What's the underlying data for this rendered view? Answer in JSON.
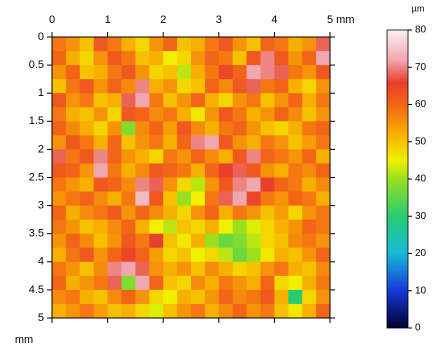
{
  "chart_data": {
    "type": "heatmap",
    "xlim": [
      0,
      5
    ],
    "ylim": [
      0,
      5
    ],
    "xticks": [
      0,
      1,
      2,
      3,
      4,
      {
        "value": 5,
        "label": "5 mm"
      }
    ],
    "yticks": [
      0,
      0.5,
      1,
      1.5,
      2,
      2.5,
      3,
      3.5,
      4,
      4.5,
      5
    ],
    "ylabel": "mm",
    "colorbar": {
      "label": "µm",
      "lim": [
        0,
        80
      ],
      "ticks": [
        0,
        10,
        20,
        30,
        40,
        50,
        60,
        70,
        80
      ]
    },
    "colorscale": [
      [
        0,
        "#000030"
      ],
      [
        10,
        "#1838d8"
      ],
      [
        20,
        "#18b8d8"
      ],
      [
        30,
        "#28cc70"
      ],
      [
        40,
        "#98e020"
      ],
      [
        45,
        "#f0f000"
      ],
      [
        52,
        "#f8b000"
      ],
      [
        60,
        "#f26418"
      ],
      [
        66,
        "#e8402a"
      ],
      [
        72,
        "#f0a8b0"
      ],
      [
        80,
        "#fcf0f4"
      ]
    ],
    "z": [
      [
        58,
        55,
        50,
        62,
        58,
        52,
        48,
        55,
        60,
        50,
        52,
        58,
        62,
        55,
        50,
        60,
        58,
        52,
        55,
        68
      ],
      [
        60,
        52,
        48,
        55,
        62,
        58,
        50,
        52,
        45,
        48,
        55,
        60,
        58,
        50,
        62,
        70,
        62,
        55,
        60,
        72
      ],
      [
        55,
        60,
        50,
        52,
        58,
        62,
        55,
        48,
        50,
        42,
        52,
        58,
        65,
        60,
        72,
        70,
        68,
        58,
        55,
        62
      ],
      [
        50,
        58,
        62,
        55,
        60,
        56,
        70,
        52,
        55,
        48,
        50,
        60,
        56,
        62,
        68,
        58,
        60,
        52,
        48,
        55
      ],
      [
        62,
        55,
        58,
        50,
        52,
        68,
        72,
        58,
        50,
        55,
        60,
        52,
        48,
        55,
        58,
        50,
        55,
        60,
        52,
        58
      ],
      [
        58,
        52,
        50,
        55,
        48,
        62,
        60,
        56,
        58,
        52,
        46,
        55,
        62,
        58,
        52,
        55,
        60,
        56,
        50,
        55
      ],
      [
        60,
        56,
        52,
        48,
        55,
        38,
        56,
        60,
        54,
        62,
        56,
        52,
        58,
        60,
        55,
        50,
        48,
        52,
        58,
        60
      ],
      [
        55,
        62,
        58,
        52,
        60,
        50,
        55,
        58,
        52,
        60,
        70,
        72,
        62,
        55,
        52,
        58,
        55,
        50,
        54,
        58
      ],
      [
        68,
        58,
        62,
        70,
        60,
        55,
        52,
        48,
        58,
        55,
        60,
        56,
        52,
        62,
        70,
        60,
        58,
        55,
        60,
        52
      ],
      [
        62,
        60,
        55,
        72,
        58,
        52,
        56,
        62,
        60,
        58,
        52,
        60,
        66,
        68,
        62,
        55,
        52,
        58,
        56,
        60
      ],
      [
        58,
        55,
        52,
        62,
        60,
        56,
        70,
        68,
        55,
        48,
        42,
        55,
        62,
        70,
        72,
        66,
        60,
        58,
        52,
        56
      ],
      [
        55,
        58,
        60,
        56,
        52,
        58,
        74,
        62,
        50,
        40,
        45,
        58,
        68,
        72,
        65,
        58,
        55,
        60,
        58,
        52
      ],
      [
        60,
        52,
        56,
        58,
        62,
        55,
        60,
        56,
        52,
        48,
        55,
        60,
        52,
        58,
        55,
        50,
        54,
        48,
        55,
        58
      ],
      [
        58,
        55,
        50,
        52,
        56,
        60,
        52,
        45,
        42,
        50,
        48,
        52,
        45,
        40,
        44,
        48,
        52,
        55,
        60,
        58
      ],
      [
        55,
        60,
        56,
        50,
        55,
        62,
        58,
        66,
        50,
        46,
        52,
        40,
        36,
        38,
        42,
        48,
        50,
        56,
        58,
        55
      ],
      [
        52,
        58,
        62,
        55,
        60,
        65,
        60,
        54,
        48,
        50,
        45,
        48,
        42,
        36,
        40,
        46,
        52,
        50,
        55,
        60
      ],
      [
        58,
        55,
        50,
        56,
        70,
        72,
        68,
        55,
        52,
        55,
        50,
        56,
        52,
        48,
        50,
        55,
        58,
        52,
        50,
        56
      ],
      [
        60,
        52,
        55,
        58,
        68,
        38,
        72,
        60,
        50,
        48,
        56,
        52,
        58,
        55,
        52,
        60,
        48,
        45,
        52,
        58
      ],
      [
        56,
        58,
        52,
        50,
        56,
        60,
        55,
        48,
        45,
        52,
        50,
        55,
        60,
        56,
        58,
        62,
        52,
        30,
        48,
        55
      ],
      [
        52,
        55,
        58,
        54,
        50,
        52,
        48,
        44,
        50,
        55,
        58,
        52,
        56,
        60,
        55,
        58,
        50,
        46,
        52,
        60
      ]
    ]
  }
}
